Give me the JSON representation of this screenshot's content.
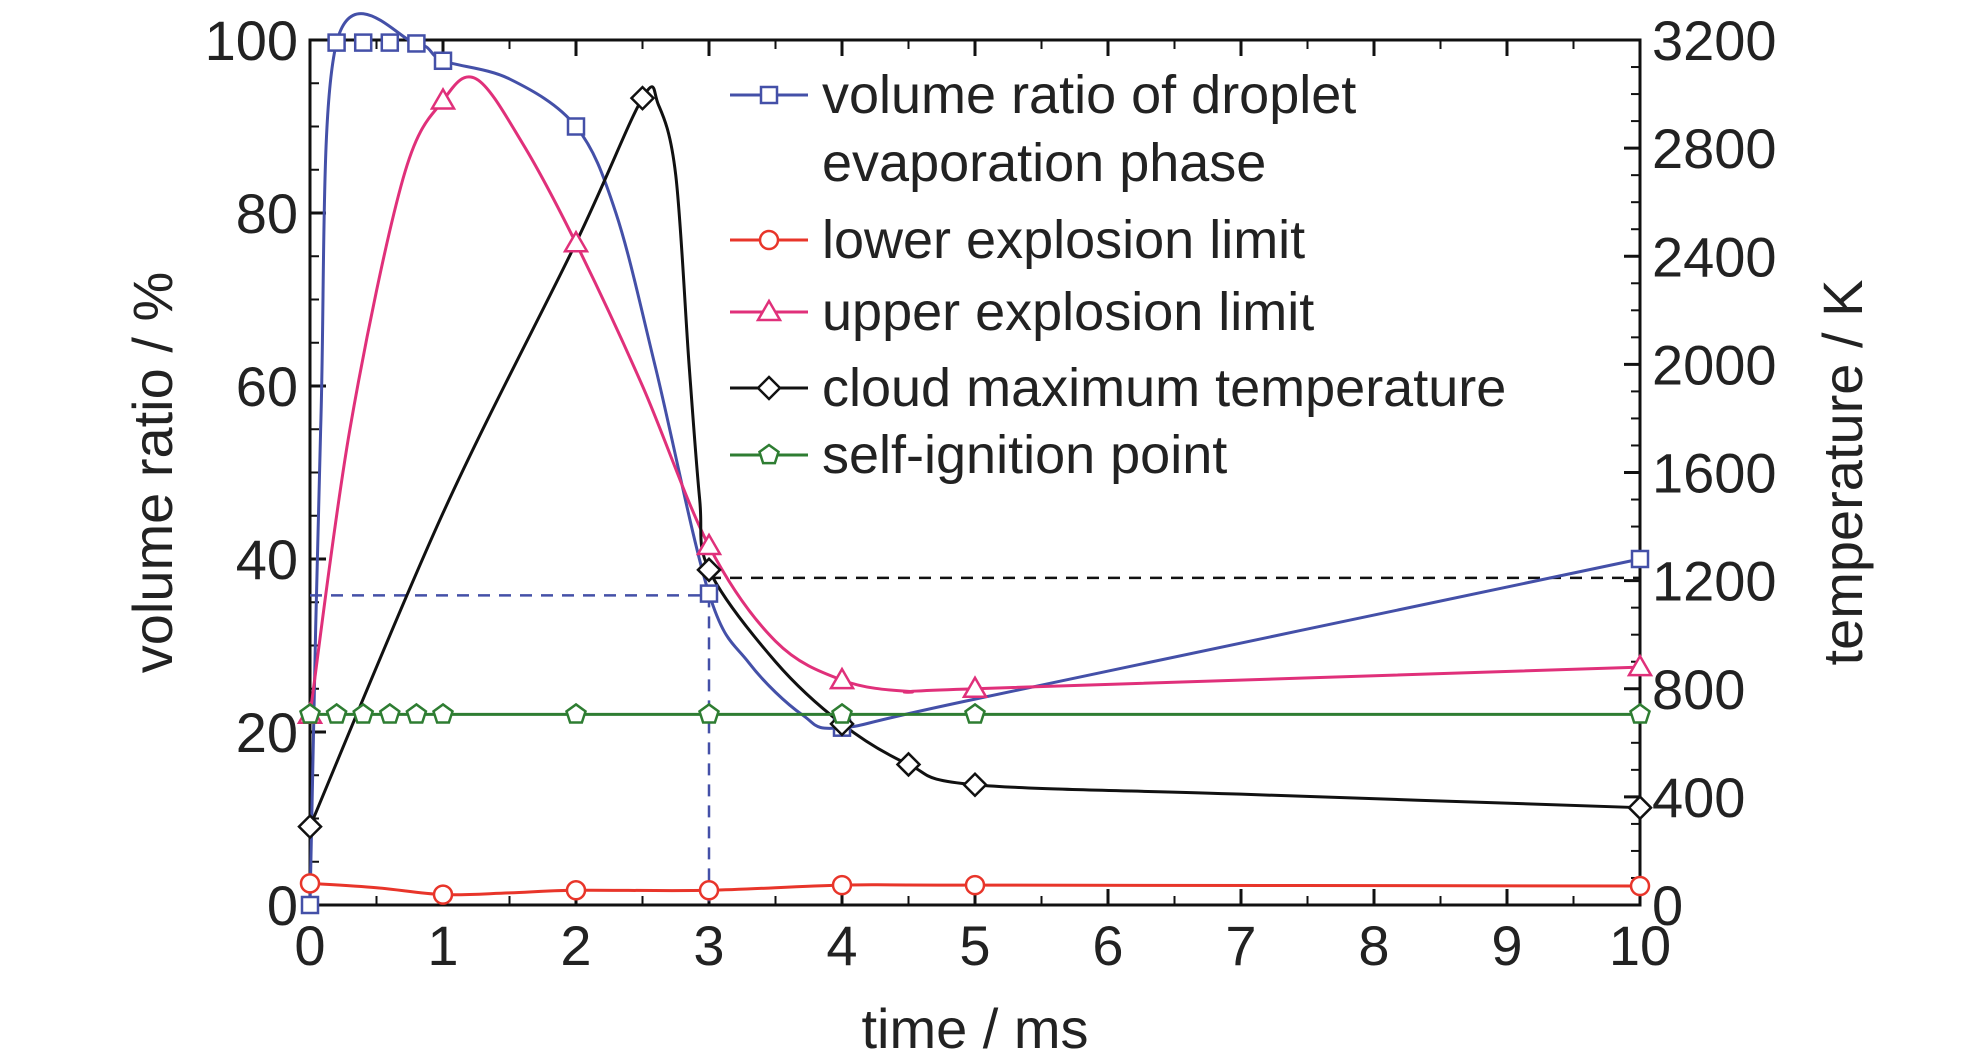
{
  "chart_data": {
    "type": "line",
    "xlabel": "time / ms",
    "ylabel_left": "volume ratio / %",
    "ylabel_right": "temperature / K",
    "xlim": [
      0,
      10
    ],
    "ylim_left": [
      0,
      100
    ],
    "ylim_right": [
      0,
      3200
    ],
    "x_ticks": [
      0,
      1,
      2,
      3,
      4,
      5,
      6,
      7,
      8,
      9,
      10
    ],
    "y_left_ticks": [
      0,
      20,
      40,
      60,
      80,
      100
    ],
    "y_right_ticks": [
      0,
      400,
      800,
      1200,
      1600,
      2000,
      2400,
      2800,
      3200
    ],
    "grid": false,
    "legend_position": "top-right",
    "series": [
      {
        "name": "volume ratio of droplet evaporation phase",
        "axis": "left",
        "color": "#4450a8",
        "marker": "square",
        "x": [
          0,
          0.2,
          0.4,
          0.6,
          0.8,
          1,
          2,
          3,
          4,
          10
        ],
        "y": [
          0,
          99.7,
          99.7,
          99.7,
          99.6,
          97.6,
          90,
          36,
          20.5,
          40
        ],
        "curve": [
          [
            0,
            0
          ],
          [
            0.08,
            55
          ],
          [
            0.2,
            99.7
          ],
          [
            0.8,
            99.6
          ],
          [
            1,
            97.6
          ],
          [
            1.5,
            95.5
          ],
          [
            2,
            90
          ],
          [
            2.3,
            80
          ],
          [
            2.6,
            62
          ],
          [
            3,
            36
          ],
          [
            3.3,
            28
          ],
          [
            3.7,
            22
          ],
          [
            4,
            20.5
          ],
          [
            5,
            23.8
          ],
          [
            10,
            40
          ]
        ]
      },
      {
        "name": "lower explosion limit",
        "axis": "left",
        "color": "#e8352a",
        "marker": "circle",
        "x": [
          0,
          1,
          2,
          3,
          4,
          5,
          10
        ],
        "y": [
          2.5,
          1.2,
          1.7,
          1.7,
          2.3,
          2.3,
          2.2
        ],
        "curve": [
          [
            0,
            2.5
          ],
          [
            0.5,
            2
          ],
          [
            1,
            1.2
          ],
          [
            1.5,
            1.4
          ],
          [
            2,
            1.7
          ],
          [
            3,
            1.7
          ],
          [
            4,
            2.3
          ],
          [
            5,
            2.3
          ],
          [
            10,
            2.2
          ]
        ]
      },
      {
        "name": "upper explosion limit",
        "axis": "left",
        "color": "#e0307a",
        "marker": "triangle",
        "x": [
          0,
          1,
          2,
          3,
          4,
          5,
          10
        ],
        "y": [
          22,
          93,
          76.5,
          41.5,
          26,
          25,
          27.5
        ],
        "curve": [
          [
            0,
            22
          ],
          [
            0.3,
            55
          ],
          [
            0.7,
            84
          ],
          [
            1,
            93
          ],
          [
            1.25,
            95.5
          ],
          [
            1.6,
            88
          ],
          [
            2,
            76.5
          ],
          [
            2.5,
            60
          ],
          [
            3,
            41.5
          ],
          [
            3.5,
            30.5
          ],
          [
            4,
            26
          ],
          [
            4.5,
            24.7
          ],
          [
            5,
            25
          ],
          [
            10,
            27.5
          ]
        ]
      },
      {
        "name": "cloud maximum temperature",
        "axis": "right",
        "color": "#111111",
        "marker": "diamond",
        "x": [
          0,
          2.5,
          3,
          4,
          4.5,
          5,
          10
        ],
        "y": [
          290,
          2985,
          1240,
          670,
          520,
          445,
          360
        ],
        "curve": [
          [
            0,
            290
          ],
          [
            1,
            1450
          ],
          [
            2,
            2450
          ],
          [
            2.5,
            2985
          ],
          [
            2.62,
            2960
          ],
          [
            2.75,
            2700
          ],
          [
            2.85,
            2000
          ],
          [
            2.93,
            1500
          ],
          [
            3,
            1240
          ],
          [
            3.5,
            900
          ],
          [
            4,
            670
          ],
          [
            4.5,
            520
          ],
          [
            5,
            445
          ],
          [
            7,
            410
          ],
          [
            10,
            360
          ]
        ]
      },
      {
        "name": "self-ignition point",
        "axis": "right",
        "color": "#2e7d32",
        "marker": "pentagon",
        "x": [
          0,
          0.2,
          0.4,
          0.6,
          0.8,
          1,
          2,
          3,
          4,
          5,
          10
        ],
        "y": [
          705,
          705,
          705,
          705,
          705,
          705,
          705,
          705,
          705,
          705,
          705
        ],
        "curve": [
          [
            0,
            705
          ],
          [
            10,
            705
          ]
        ]
      }
    ],
    "reference_lines": [
      {
        "axis": "left",
        "color": "#4450a8",
        "style": "dashed",
        "points": [
          [
            0,
            35.8
          ],
          [
            3,
            35.8
          ],
          [
            3,
            0
          ]
        ]
      },
      {
        "axis": "right",
        "color": "#111111",
        "style": "dashed",
        "points": [
          [
            3,
            1210
          ],
          [
            10,
            1210
          ]
        ]
      }
    ]
  }
}
